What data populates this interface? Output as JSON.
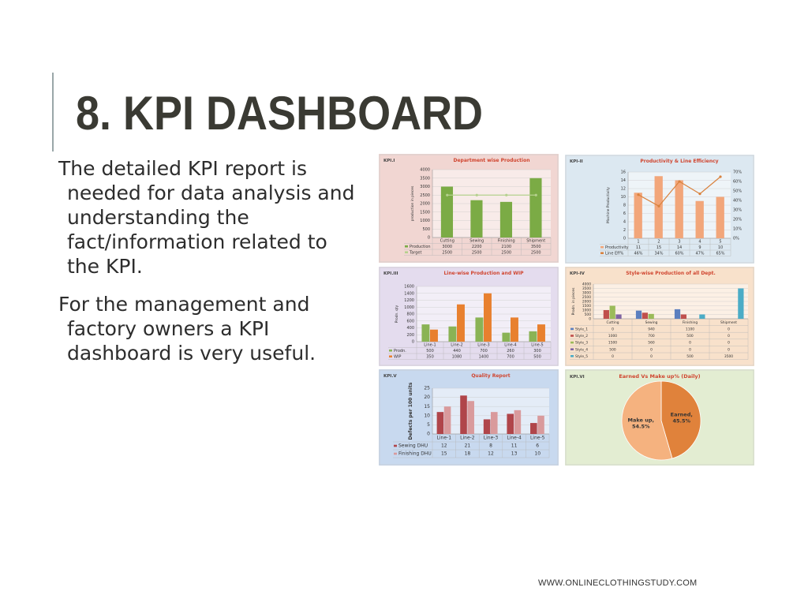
{
  "slide": {
    "title": "8. KPI DASHBOARD",
    "para1": [
      " The detailed KPI report is",
      "needed for data analysis and",
      "understanding the",
      "fact/information related to",
      "the KPI."
    ],
    "para2": [
      " For the management and",
      "factory owners a KPI",
      "dashboard is very useful."
    ],
    "footer": "WWW.ONLINECLOTHINGSTUDY.COM"
  },
  "chart_data": [
    {
      "id": "kpi1",
      "tag": "KPI.I",
      "type": "bar",
      "title": "Department wise Production",
      "ylabel": "production in pieces",
      "categories": [
        "Cutting",
        "Sewing",
        "Finishing",
        "Shipment"
      ],
      "series": [
        {
          "name": "Production",
          "values": [
            3000,
            2200,
            2100,
            3500
          ],
          "color": "#7bab45",
          "kind": "bar"
        },
        {
          "name": "Target",
          "values": [
            2500,
            2500,
            2500,
            2500
          ],
          "color": "#b5d08e",
          "kind": "line"
        }
      ],
      "yticks": [
        0,
        500,
        1000,
        1500,
        2000,
        2500,
        3000,
        3500,
        4000
      ],
      "ylim": [
        0,
        4000
      ],
      "grid": true,
      "table": true
    },
    {
      "id": "kpi2",
      "tag": "KPI-II",
      "type": "bar",
      "title": "Productivity & Line Efficiency",
      "ylabel": "Machine Productivity",
      "categories": [
        "1",
        "2",
        "3",
        "4",
        "5"
      ],
      "series": [
        {
          "name": "Productivity",
          "values": [
            11,
            15,
            14,
            9,
            10
          ],
          "color": "#f2a67a",
          "kind": "bar",
          "axis": "left"
        },
        {
          "name": "Line Eff%",
          "values": [
            46,
            34,
            60,
            47,
            65
          ],
          "labels": [
            "46%",
            "34%",
            "60%",
            "47%",
            "65%"
          ],
          "color": "#d9823e",
          "kind": "line",
          "axis": "right"
        }
      ],
      "yticks": [
        0,
        2,
        4,
        6,
        8,
        10,
        12,
        14,
        16
      ],
      "ylim": [
        0,
        16
      ],
      "yticks_right": [
        "0%",
        "10%",
        "20%",
        "30%",
        "40%",
        "50%",
        "60%",
        "70%"
      ],
      "ylim_right": [
        0,
        70
      ],
      "grid": true,
      "table": true
    },
    {
      "id": "kpi3",
      "tag": "KPI.III",
      "type": "bar",
      "title": "Line-wise Production and WIP",
      "ylabel": "Prodn. qty",
      "categories": [
        "Line-1",
        "Line-2",
        "Line-3",
        "Line-4",
        "Line-5"
      ],
      "series": [
        {
          "name": "Prodn.",
          "values": [
            500,
            440,
            700,
            260,
            300
          ],
          "color": "#8ab355",
          "kind": "bar"
        },
        {
          "name": "WIP",
          "values": [
            350,
            1080,
            1400,
            700,
            500
          ],
          "color": "#e8802f",
          "kind": "bar"
        }
      ],
      "yticks": [
        0,
        200,
        400,
        600,
        800,
        1000,
        1200,
        1400,
        1600
      ],
      "ylim": [
        0,
        1600
      ],
      "grid": true,
      "table": true
    },
    {
      "id": "kpi4",
      "tag": "KPI-IV",
      "type": "bar",
      "title": "Style-wise Production of all  Dept.",
      "ylabel": "Prodn. in pieces",
      "categories": [
        "Cutting",
        "Sewing",
        "Finishing",
        "Shipment"
      ],
      "series": [
        {
          "name": "Style_1",
          "values": [
            0,
            940,
            1100,
            0
          ],
          "color": "#5b7fbf",
          "kind": "bar"
        },
        {
          "name": "Style_2",
          "values": [
            1000,
            700,
            500,
            0
          ],
          "color": "#c0504d",
          "kind": "bar"
        },
        {
          "name": "Style_3",
          "values": [
            1500,
            560,
            0,
            0
          ],
          "color": "#9bbb59",
          "kind": "bar"
        },
        {
          "name": "Style_4",
          "values": [
            500,
            0,
            0,
            0
          ],
          "color": "#8064a2",
          "kind": "bar"
        },
        {
          "name": "Style_5",
          "values": [
            0,
            0,
            500,
            3500
          ],
          "color": "#4bacc6",
          "kind": "bar"
        }
      ],
      "yticks": [
        0,
        500,
        1000,
        1500,
        2000,
        2500,
        3000,
        3500,
        4000
      ],
      "ylim": [
        0,
        4000
      ],
      "grid": true,
      "table": true
    },
    {
      "id": "kpi5",
      "tag": "KPI.V",
      "type": "bar",
      "title": "Quality Report",
      "ylabel": "Defects per 100 units",
      "categories": [
        "Line-1",
        "Line-2",
        "Line-3",
        "Line-4",
        "Line-5"
      ],
      "series": [
        {
          "name": "Sewing DHU",
          "values": [
            12,
            21,
            8,
            11,
            6
          ],
          "color": "#b0454a",
          "kind": "bar"
        },
        {
          "name": "Finishing DHU",
          "values": [
            15,
            18,
            12,
            13,
            10
          ],
          "color": "#d99a9c",
          "kind": "bar"
        }
      ],
      "yticks": [
        0,
        5,
        10,
        15,
        20,
        25
      ],
      "ylim": [
        0,
        25
      ],
      "grid": true,
      "table": true
    },
    {
      "id": "kpi6",
      "tag": "KPI.VI",
      "type": "pie",
      "title": "Earned Vs Make up% (Daily)",
      "slices": [
        {
          "label": "Earned,",
          "value_label": "45.5%",
          "value": 45.5,
          "color": "#e0823b"
        },
        {
          "label": "Make up,",
          "value_label": "54.5%",
          "value": 54.5,
          "color": "#f5b27f"
        }
      ]
    }
  ]
}
